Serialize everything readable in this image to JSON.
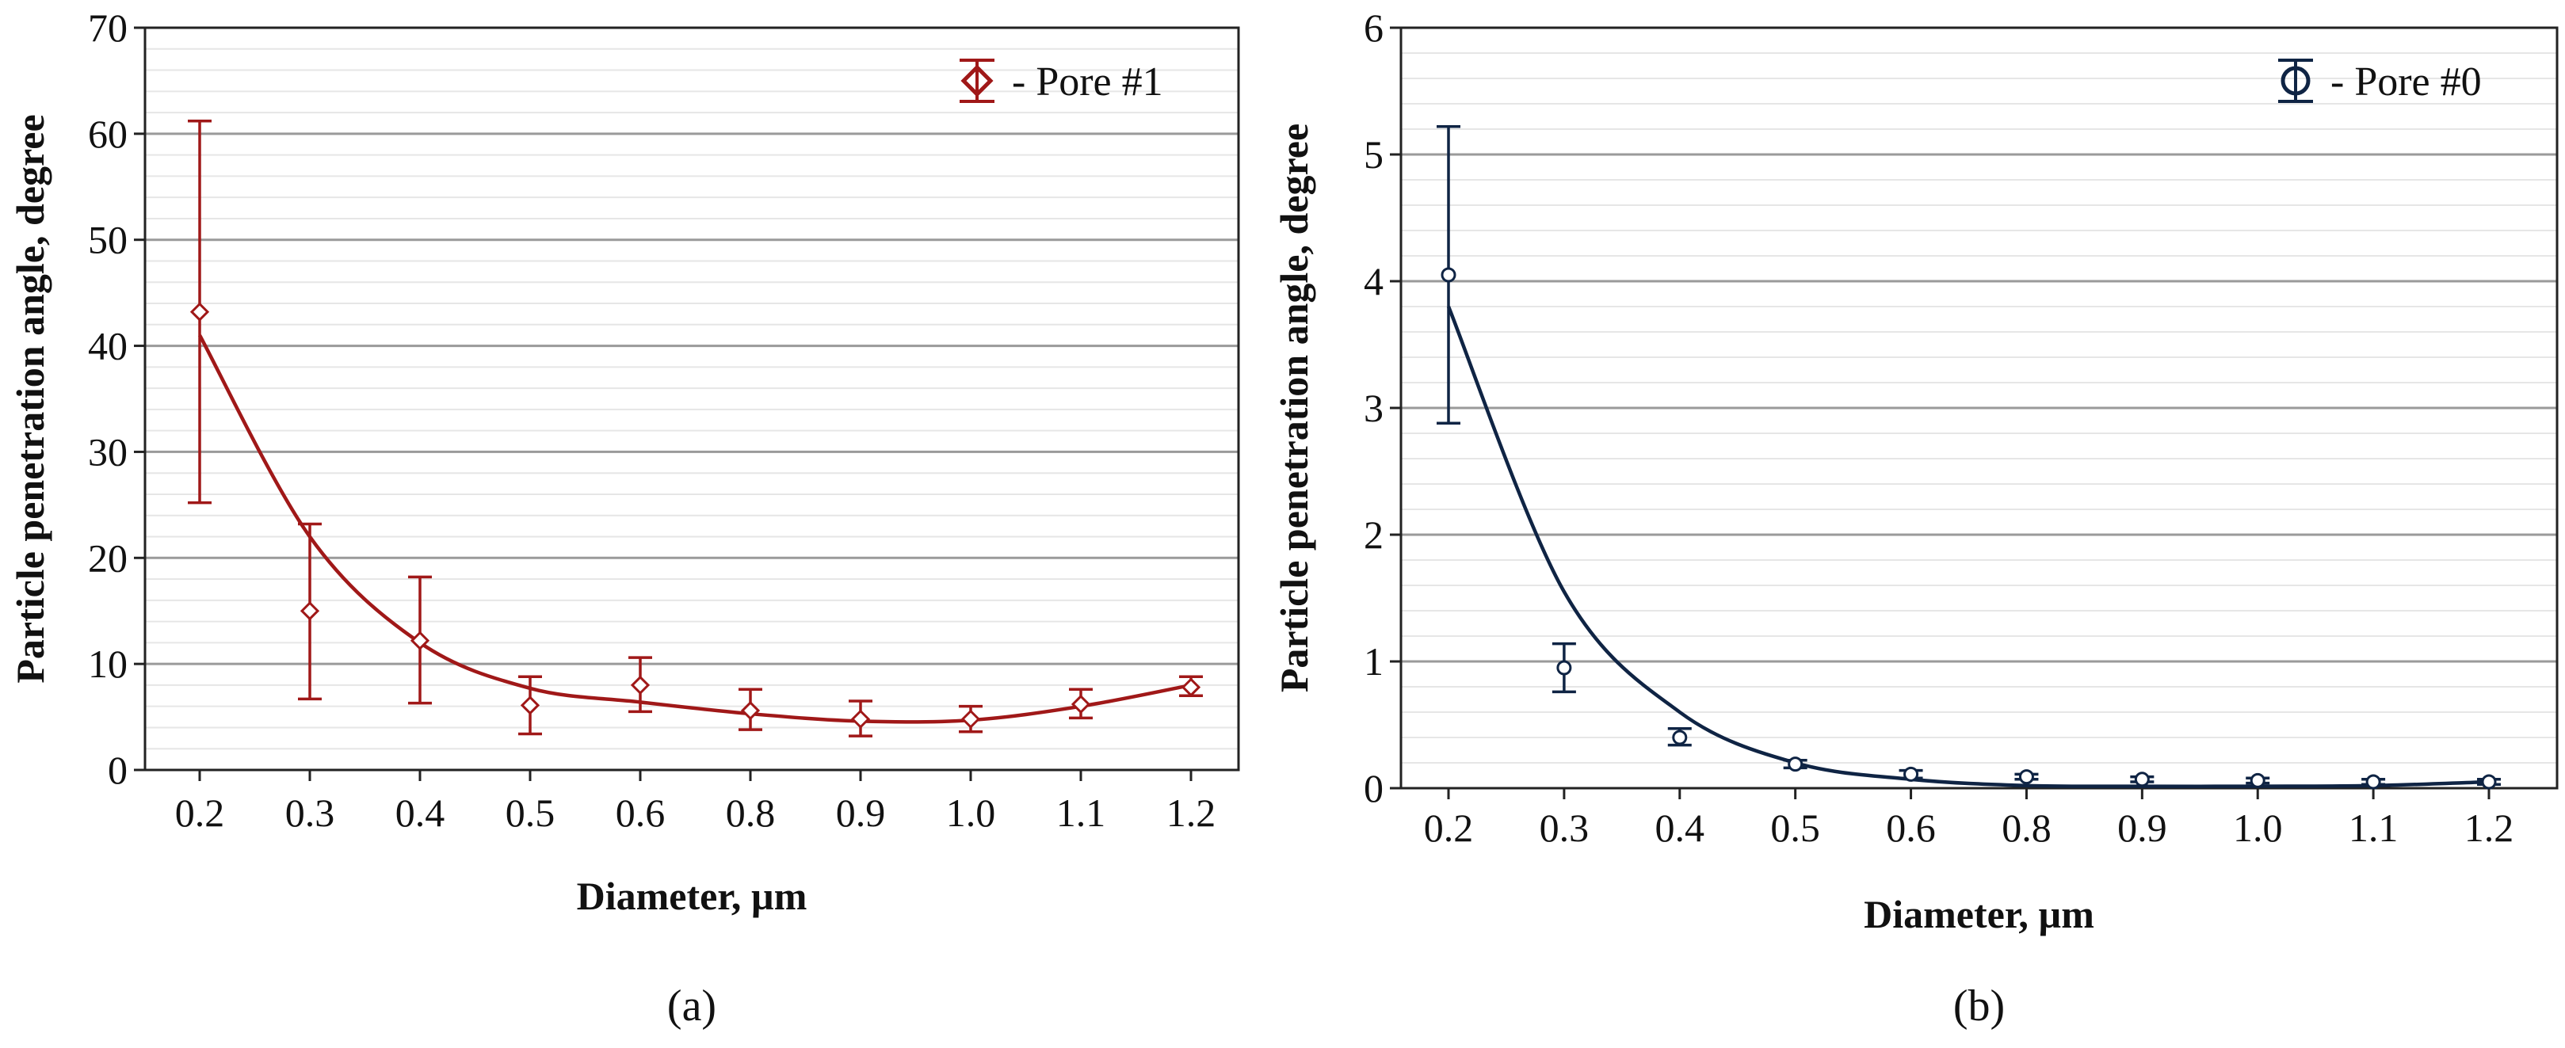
{
  "chart_data": [
    {
      "id": "a",
      "type": "scatter",
      "caption": "(a)",
      "xlabel": "Diameter, µm",
      "ylabel": "Particle penetration angle, degree",
      "categories": [
        "0.2",
        "0.3",
        "0.4",
        "0.5",
        "0.6",
        "0.8",
        "0.9",
        "1.0",
        "1.1",
        "1.2"
      ],
      "ylim": [
        0,
        70
      ],
      "yticks": [
        0,
        10,
        20,
        30,
        40,
        50,
        60,
        70
      ],
      "ytick_labels": [
        "0",
        "10",
        "20",
        "30",
        "40",
        "50",
        "60",
        "70"
      ],
      "grid": true,
      "legend": "top-right",
      "series": [
        {
          "name": "- Pore #1",
          "marker": "diamond",
          "color": "#a01818",
          "values": [
            43.2,
            15.0,
            12.2,
            6.1,
            8.0,
            5.6,
            4.8,
            4.8,
            6.2,
            7.8
          ],
          "err_low": [
            25.2,
            6.7,
            6.3,
            3.4,
            5.5,
            3.8,
            3.2,
            3.6,
            4.9,
            7.0
          ],
          "err_high": [
            61.2,
            23.2,
            18.2,
            8.8,
            10.6,
            7.6,
            6.5,
            6.0,
            7.6,
            8.8
          ],
          "fit": [
            41.0,
            22.0,
            12.0,
            7.7,
            6.4,
            5.3,
            4.6,
            4.7,
            6.0,
            8.0
          ]
        }
      ]
    },
    {
      "id": "b",
      "type": "scatter",
      "caption": "(b)",
      "xlabel": "Diameter, µm",
      "ylabel": "Particle penetration angle, degree",
      "categories": [
        "0.2",
        "0.3",
        "0.4",
        "0.5",
        "0.6",
        "0.8",
        "0.9",
        "1.0",
        "1.1",
        "1.2"
      ],
      "ylim": [
        0,
        6
      ],
      "yticks": [
        0,
        1,
        2,
        3,
        4,
        5,
        6
      ],
      "ytick_labels": [
        "0",
        "1",
        "2",
        "3",
        "4",
        "5",
        "6"
      ],
      "grid": true,
      "legend": "top-right",
      "series": [
        {
          "name": "- Pore #0",
          "marker": "circle",
          "color": "#0f2444",
          "values": [
            4.05,
            0.95,
            0.4,
            0.19,
            0.11,
            0.09,
            0.07,
            0.06,
            0.05,
            0.05
          ],
          "err_low": [
            2.88,
            0.76,
            0.34,
            0.16,
            0.08,
            0.07,
            0.05,
            0.04,
            0.03,
            0.03
          ],
          "err_high": [
            5.22,
            1.14,
            0.47,
            0.22,
            0.14,
            0.11,
            0.09,
            0.08,
            0.07,
            0.07
          ],
          "fit": [
            3.8,
            1.55,
            0.6,
            0.2,
            0.07,
            0.02,
            0.015,
            0.015,
            0.02,
            0.05
          ]
        }
      ]
    }
  ]
}
